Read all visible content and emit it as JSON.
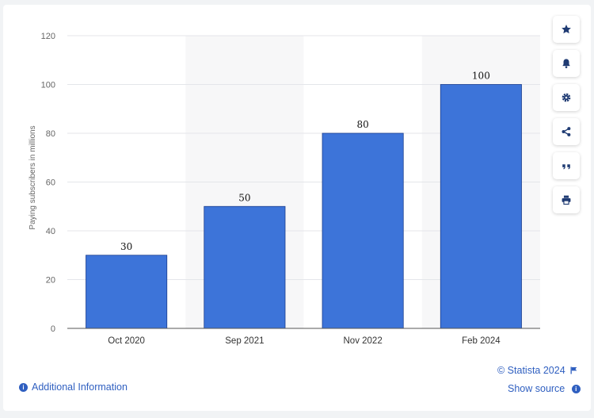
{
  "chart_data": {
    "type": "bar",
    "categories": [
      "Oct 2020",
      "Sep 2021",
      "Nov 2022",
      "Feb 2024"
    ],
    "values": [
      30,
      50,
      80,
      100
    ],
    "data_labels": [
      "30",
      "50",
      "80",
      "100"
    ],
    "ylabel": "Paying subscribers in millions",
    "ylim": [
      0,
      120
    ],
    "yticks": [
      0,
      20,
      40,
      60,
      80,
      100,
      120
    ],
    "ytick_labels": [
      "0",
      "20",
      "40",
      "60",
      "80",
      "100",
      "120"
    ],
    "grid": true,
    "bar_color": "#3d74d9",
    "band_color": "#f7f7f8"
  },
  "footer": {
    "copyright": "© Statista 2024",
    "additional_info": "Additional Information",
    "show_source": "Show source"
  },
  "toolbar": {
    "icons": [
      "star-icon",
      "bell-icon",
      "gear-icon",
      "share-icon",
      "quote-icon",
      "print-icon"
    ]
  }
}
